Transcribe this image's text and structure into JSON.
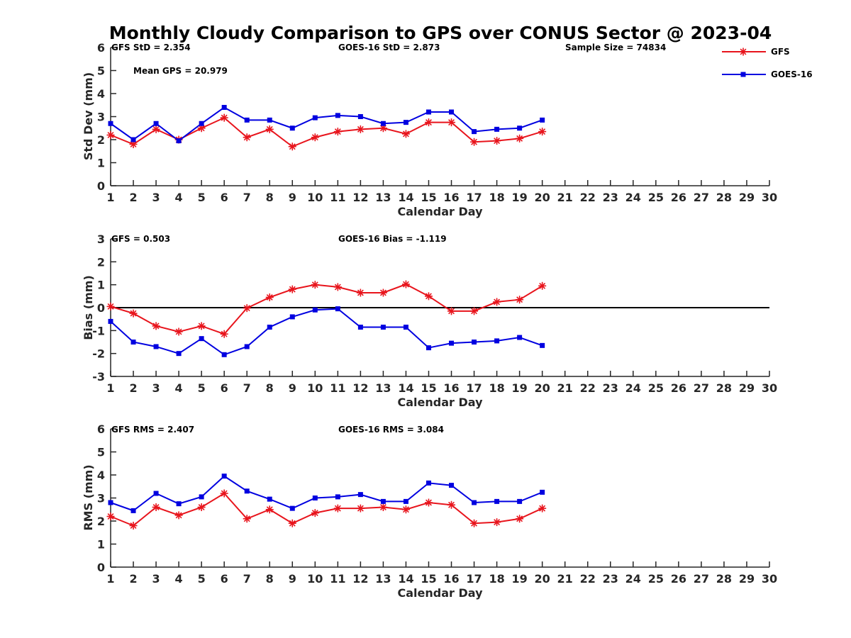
{
  "title": "Monthly Cloudy Comparison to GPS over CONUS Sector @ 2023-04",
  "legend": {
    "placement": "top-right",
    "entries": [
      {
        "name": "GFS",
        "color": "#e8141c",
        "marker": "asterisk"
      },
      {
        "name": "GOES-16",
        "color": "#0000e0",
        "marker": "square"
      }
    ]
  },
  "chart_data": [
    {
      "type": "line",
      "xlabel": "Calendar Day",
      "ylabel": "Std Dev (mm)",
      "xlim": [
        1,
        30
      ],
      "ylim": [
        0,
        6
      ],
      "xticks": [
        1,
        2,
        3,
        4,
        5,
        6,
        7,
        8,
        9,
        10,
        11,
        12,
        13,
        14,
        15,
        16,
        17,
        18,
        19,
        20,
        21,
        22,
        23,
        24,
        25,
        26,
        27,
        28,
        29,
        30
      ],
      "yticks": [
        0,
        1,
        2,
        3,
        4,
        5,
        6
      ],
      "zero_line": false,
      "annotations": [
        {
          "text": "GFS StD = 2.354"
        },
        {
          "text": "GOES-16 StD = 2.873"
        },
        {
          "text": "Sample Size = 74834"
        },
        {
          "text": "Mean GPS = 20.979"
        }
      ],
      "x": [
        1,
        2,
        3,
        4,
        5,
        6,
        7,
        8,
        9,
        10,
        11,
        12,
        13,
        14,
        15,
        16,
        17,
        18,
        19,
        20
      ],
      "series": [
        {
          "name": "GFS",
          "color": "#e8141c",
          "values": [
            2.2,
            1.8,
            2.45,
            2.0,
            2.5,
            2.95,
            2.1,
            2.45,
            1.7,
            2.1,
            2.35,
            2.45,
            2.5,
            2.25,
            2.75,
            2.75,
            1.9,
            1.95,
            2.05,
            2.35
          ]
        },
        {
          "name": "GOES-16",
          "color": "#0000e0",
          "values": [
            2.7,
            2.0,
            2.7,
            1.95,
            2.7,
            3.4,
            2.85,
            2.85,
            2.5,
            2.95,
            3.05,
            3.0,
            2.7,
            2.75,
            3.2,
            3.2,
            2.35,
            2.45,
            2.5,
            2.85
          ]
        }
      ]
    },
    {
      "type": "line",
      "xlabel": "Calendar Day",
      "ylabel": "Bias (mm)",
      "xlim": [
        1,
        30
      ],
      "ylim": [
        -3,
        3
      ],
      "xticks": [
        1,
        2,
        3,
        4,
        5,
        6,
        7,
        8,
        9,
        10,
        11,
        12,
        13,
        14,
        15,
        16,
        17,
        18,
        19,
        20,
        21,
        22,
        23,
        24,
        25,
        26,
        27,
        28,
        29,
        30
      ],
      "yticks": [
        -3,
        -2,
        -1,
        0,
        1,
        2,
        3
      ],
      "zero_line": true,
      "annotations": [
        {
          "text": "GFS = 0.503"
        },
        {
          "text": "GOES-16 Bias = -1.119"
        }
      ],
      "x": [
        1,
        2,
        3,
        4,
        5,
        6,
        7,
        8,
        9,
        10,
        11,
        12,
        13,
        14,
        15,
        16,
        17,
        18,
        19,
        20
      ],
      "series": [
        {
          "name": "GFS",
          "color": "#e8141c",
          "values": [
            0.05,
            -0.25,
            -0.8,
            -1.05,
            -0.8,
            -1.15,
            -0.02,
            0.45,
            0.8,
            1.0,
            0.9,
            0.65,
            0.65,
            1.02,
            0.5,
            -0.15,
            -0.15,
            0.25,
            0.35,
            0.95
          ]
        },
        {
          "name": "GOES-16",
          "color": "#0000e0",
          "values": [
            -0.6,
            -1.5,
            -1.7,
            -2.0,
            -1.35,
            -2.05,
            -1.7,
            -0.85,
            -0.4,
            -0.1,
            -0.05,
            -0.85,
            -0.85,
            -0.85,
            -1.75,
            -1.55,
            -1.5,
            -1.45,
            -1.3,
            -1.65
          ]
        }
      ]
    },
    {
      "type": "line",
      "xlabel": "Calendar Day",
      "ylabel": "RMS (mm)",
      "xlim": [
        1,
        30
      ],
      "ylim": [
        0,
        6
      ],
      "xticks": [
        1,
        2,
        3,
        4,
        5,
        6,
        7,
        8,
        9,
        10,
        11,
        12,
        13,
        14,
        15,
        16,
        17,
        18,
        19,
        20,
        21,
        22,
        23,
        24,
        25,
        26,
        27,
        28,
        29,
        30
      ],
      "yticks": [
        0,
        1,
        2,
        3,
        4,
        5,
        6
      ],
      "zero_line": false,
      "annotations": [
        {
          "text": "GFS RMS = 2.407"
        },
        {
          "text": "GOES-16 RMS = 3.084"
        }
      ],
      "x": [
        1,
        2,
        3,
        4,
        5,
        6,
        7,
        8,
        9,
        10,
        11,
        12,
        13,
        14,
        15,
        16,
        17,
        18,
        19,
        20
      ],
      "series": [
        {
          "name": "GFS",
          "color": "#e8141c",
          "values": [
            2.2,
            1.8,
            2.6,
            2.25,
            2.6,
            3.2,
            2.1,
            2.5,
            1.9,
            2.35,
            2.55,
            2.55,
            2.6,
            2.5,
            2.8,
            2.7,
            1.9,
            1.95,
            2.1,
            2.55
          ]
        },
        {
          "name": "GOES-16",
          "color": "#0000e0",
          "values": [
            2.8,
            2.45,
            3.2,
            2.75,
            3.05,
            3.95,
            3.3,
            2.95,
            2.55,
            3.0,
            3.05,
            3.15,
            2.85,
            2.85,
            3.65,
            3.55,
            2.8,
            2.85,
            2.85,
            3.25
          ]
        }
      ]
    }
  ]
}
